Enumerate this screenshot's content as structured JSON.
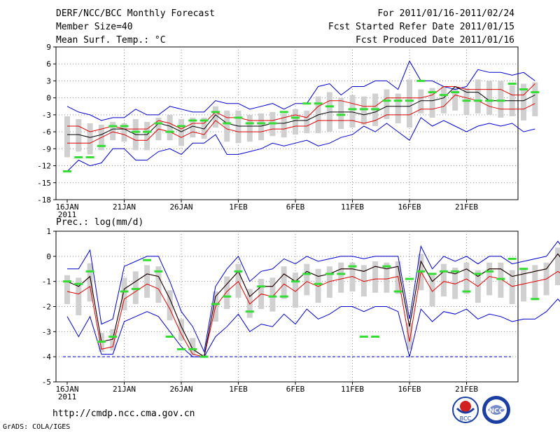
{
  "header": {
    "title": "DERF/NCC/BCC Monthly Forecast",
    "member_size": "Member Size=40",
    "variable": "Mean Surf. Temp.: °C",
    "forecast_period": "For 2011/01/16-2011/02/24",
    "start_date": "Fcst Started Refer Date 2011/01/15",
    "produced_date": "Fcst Produced Date 2011/01/16"
  },
  "footer": {
    "url": "http://cmdp.ncc.cma.gov.cn",
    "credit": "GrADS: COLA/IGES",
    "logos": [
      "BCC",
      "NCC"
    ]
  },
  "colors": {
    "ensemble_max_min": "#0000cc",
    "percentile_lines": "#dd0000",
    "ensemble_mean": "#000000",
    "observed_marker": "#33dd33",
    "spread_box": "#d0d0d0",
    "baseline": "#0000cc"
  },
  "chart_data": [
    {
      "type": "line",
      "title": "Mean Surf. Temp.: °C",
      "x_labels": [
        "16JAN",
        "21JAN",
        "26JAN",
        "1FEB",
        "6FEB",
        "11FEB",
        "16FEB",
        "21FEB"
      ],
      "x_year_label": "2011",
      "ylim": [
        -18,
        9
      ],
      "yticks": [
        9,
        6,
        3,
        0,
        -3,
        -6,
        -9,
        -12,
        -15,
        -18
      ],
      "grid": true,
      "days": 40,
      "series": [
        {
          "name": "max",
          "values": [
            -1.5,
            -2.5,
            -3,
            -4,
            -3.5,
            -3.5,
            -2,
            -3,
            -3,
            -1.5,
            -2,
            -2.5,
            -2.5,
            -0.5,
            -1,
            -1,
            -2,
            -1.5,
            -1,
            -2,
            -1,
            -1,
            2,
            2.5,
            0.5,
            2,
            2,
            3,
            3,
            1.5,
            6.5,
            3,
            3,
            2,
            1.5,
            2,
            5,
            4.5,
            4.5,
            4,
            4.5,
            3
          ]
        },
        {
          "name": "p90",
          "values": [
            -5,
            -5,
            -6,
            -5.5,
            -5,
            -5.5,
            -5.5,
            -5.5,
            -4,
            -4.5,
            -5.5,
            -4.5,
            -4.5,
            -2.5,
            -3.5,
            -3.5,
            -4,
            -4,
            -4,
            -3.5,
            -3,
            -3.5,
            -1.5,
            -0.5,
            -0.5,
            -1,
            -1.5,
            -1.5,
            0,
            0,
            0,
            0,
            0.5,
            2,
            2,
            1.5,
            1.5,
            1.5,
            1.5,
            0.5,
            0.5,
            2.5,
            2,
            2,
            2,
            1.5,
            1.5
          ]
        },
        {
          "name": "mean",
          "values": [
            -6.5,
            -6.5,
            -7,
            -6.5,
            -5.5,
            -5.5,
            -6.5,
            -6.5,
            -4.5,
            -5,
            -6,
            -5,
            -5.5,
            -3,
            -4.5,
            -5,
            -5,
            -5,
            -4.5,
            -4.5,
            -4,
            -4,
            -3,
            -2.5,
            -2.5,
            -2.5,
            -3,
            -2.5,
            -1.5,
            -1.5,
            -1.5,
            -0.5,
            -0.5,
            0,
            2,
            1,
            1,
            -0.5,
            -0.5,
            -0.5,
            -0.5,
            0.5,
            0,
            0,
            -0.5,
            -0.5,
            0
          ]
        },
        {
          "name": "p10",
          "values": [
            -8,
            -8,
            -8,
            -7,
            -6,
            -6.5,
            -7.5,
            -7.5,
            -5.5,
            -6,
            -7,
            -6,
            -6.5,
            -4,
            -5.5,
            -6,
            -6,
            -6,
            -5.5,
            -5.5,
            -5,
            -5,
            -4,
            -4,
            -4,
            -4,
            -4.5,
            -4,
            -3,
            -3,
            -3,
            -2,
            -2,
            -1.5,
            0.5,
            0,
            -0.5,
            -1.5,
            -2,
            -2,
            -2,
            -1,
            -1.5,
            -1.5,
            -2,
            -2,
            -1.5
          ]
        },
        {
          "name": "min",
          "values": [
            -13,
            -11,
            -12,
            -11.5,
            -9,
            -9,
            -11,
            -11,
            -9.5,
            -9,
            -10,
            -8,
            -8,
            -6.5,
            -10,
            -10,
            -9.5,
            -9,
            -8,
            -8.5,
            -8,
            -7.5,
            -8.5,
            -8,
            -7,
            -6.5,
            -5,
            -6,
            -4.5,
            -6,
            -7.5,
            -3.5,
            -5,
            -4,
            -5,
            -6,
            -5,
            -4.5,
            -5,
            -4.5,
            -6,
            -5.5,
            -4.5,
            -4,
            -4.5,
            -4.5,
            -3
          ]
        },
        {
          "name": "observed",
          "values": [
            -13,
            -10.5,
            -10.5,
            -8.5,
            -5,
            -5,
            -6,
            -6,
            -4.5,
            -6,
            -5,
            -4,
            -4,
            -2.5,
            -4.5,
            -3.5,
            -4.5,
            -4.5,
            -4.5,
            -2.5,
            -3.5,
            -1,
            -1,
            -1.5,
            -3,
            -2,
            -2,
            -2,
            -0.5,
            -0.5,
            -0.5,
            3,
            1,
            0.5,
            1,
            -0.5,
            -0.5,
            -0.5,
            -0.5,
            2.5,
            1.5,
            1,
            1.5,
            2.5,
            2,
            1
          ]
        }
      ]
    },
    {
      "type": "line",
      "title": "Prec.: log(mm/d)",
      "x_labels": [
        "16JAN",
        "21JAN",
        "26JAN",
        "1FEB",
        "6FEB",
        "11FEB",
        "16FEB",
        "21FEB"
      ],
      "x_year_label": "2011",
      "ylim": [
        -5,
        1
      ],
      "yticks": [
        1,
        0,
        -1,
        -2,
        -3,
        -4,
        -5
      ],
      "grid": true,
      "days": 40,
      "baseline": -4,
      "series": [
        {
          "name": "max",
          "values": [
            -0.5,
            -0.5,
            0.25,
            -2.7,
            -2.5,
            -0.4,
            -0.2,
            0,
            0,
            -1,
            -2.2,
            -2.8,
            -3.8,
            -1.2,
            -0.5,
            0,
            -1,
            -0.6,
            -0.5,
            -0.1,
            -0.3,
            0,
            -0.2,
            -0.1,
            0,
            0,
            -0.1,
            0,
            0,
            0,
            -2.5,
            0.4,
            -0.5,
            0,
            -0.2,
            0,
            -0.3,
            0,
            0,
            -0.3,
            -0.2,
            -0.1,
            0,
            0.6,
            0,
            -1.2
          ]
        },
        {
          "name": "p90",
          "values": [
            -1,
            -1.2,
            -0.8,
            -3.4,
            -3.3,
            -1.3,
            -1,
            -0.7,
            -0.8,
            -1.7,
            -2.8,
            -3.7,
            -4,
            -1.6,
            -1.1,
            -0.6,
            -1.6,
            -1.2,
            -1.2,
            -0.7,
            -1,
            -0.6,
            -0.8,
            -0.7,
            -0.5,
            -0.5,
            -0.6,
            -0.4,
            -0.5,
            -0.4,
            -2.8,
            -0.2,
            -1,
            -0.6,
            -0.7,
            -0.5,
            -0.8,
            -0.5,
            -0.5,
            -0.8,
            -0.7,
            -0.6,
            -0.5,
            0.1,
            -0.5,
            -1.6
          ]
        },
        {
          "name": "mean",
          "values": [
            -1,
            -1.2,
            -0.8,
            -3.4,
            -3.3,
            -1.3,
            -1,
            -0.7,
            -0.8,
            -1.7,
            -2.8,
            -3.7,
            -4,
            -1.6,
            -1.1,
            -0.6,
            -1.6,
            -1.2,
            -1.2,
            -0.7,
            -1,
            -0.6,
            -0.8,
            -0.7,
            -0.5,
            -0.5,
            -0.6,
            -0.4,
            -0.5,
            -0.4,
            -2.8,
            -0.2,
            -1,
            -0.6,
            -0.7,
            -0.5,
            -0.8,
            -0.5,
            -0.5,
            -0.8,
            -0.7,
            -0.6,
            -0.5,
            0.1,
            -0.5,
            -1.6
          ]
        },
        {
          "name": "p10",
          "values": [
            -1.4,
            -1.5,
            -1.2,
            -3.7,
            -3.6,
            -1.7,
            -1.4,
            -1.1,
            -1.3,
            -2.1,
            -3.1,
            -3.9,
            -4,
            -2,
            -1.4,
            -1,
            -1.9,
            -1.5,
            -1.6,
            -1.1,
            -1.4,
            -1,
            -1.2,
            -1,
            -0.9,
            -0.8,
            -1,
            -0.9,
            -0.9,
            -0.8,
            -3.4,
            -0.6,
            -1.4,
            -1,
            -1.1,
            -0.9,
            -1.2,
            -0.8,
            -0.9,
            -1.2,
            -1.1,
            -1,
            -0.9,
            -0.6,
            -0.9,
            -2
          ]
        },
        {
          "name": "min",
          "values": [
            -2.4,
            -3.2,
            -2.4,
            -3.9,
            -3.9,
            -2.6,
            -2.4,
            -2.2,
            -2.4,
            -3,
            -3.6,
            -4,
            -4,
            -3.2,
            -2.8,
            -2.3,
            -3,
            -2.7,
            -2.8,
            -2.3,
            -2.7,
            -2.1,
            -2.5,
            -2.3,
            -2,
            -2,
            -2.2,
            -2,
            -2,
            -2.2,
            -4,
            -2.1,
            -2.6,
            -2.2,
            -2.3,
            -2.1,
            -2.5,
            -2.3,
            -2.4,
            -2.6,
            -2.5,
            -2.5,
            -2.2,
            -1.7,
            -2.2,
            -3.6
          ]
        },
        {
          "name": "observed",
          "values": [
            -1,
            -1.1,
            -0.6,
            -3.4,
            -3.2,
            -1.4,
            -1.3,
            -0.15,
            -0.6,
            -3.2,
            -3.7,
            -3.7,
            -4,
            -1.9,
            -1.6,
            -0.6,
            -2.2,
            -1.2,
            -1.6,
            -1.6,
            -1,
            -0.7,
            -1.1,
            -0.7,
            -0.7,
            -0.4,
            -3.2,
            -3.2,
            -0.4,
            -1.4,
            -0.9,
            -0.6,
            -0.7,
            -0.6,
            -0.6,
            -1.4,
            -0.7,
            -0.6,
            -0.9,
            -0.1,
            -0.5,
            -1.7
          ]
        }
      ]
    }
  ]
}
